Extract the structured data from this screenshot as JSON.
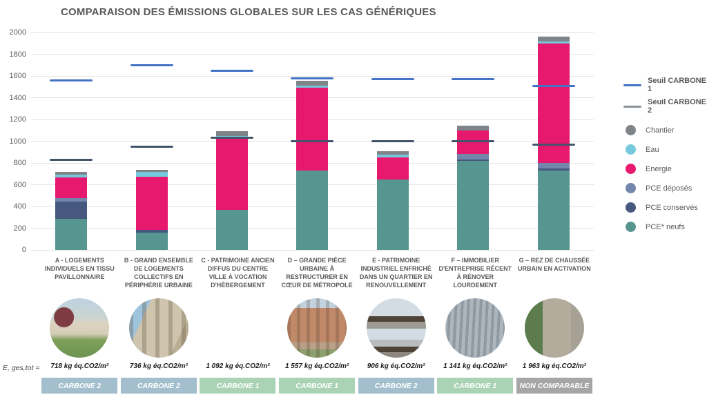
{
  "title": "COMPARAISON DES ÉMISSIONS GLOBALES SUR LES CAS GÉNÉRIQUES",
  "e_ges_label": "E, ges,tot =",
  "colors": {
    "seuil1": "#4472c4",
    "seuil2": "#44546a",
    "seuil2_legend": "#8a9199",
    "chantier": "#7f8488",
    "eau": "#76c8dc",
    "energie": "#e7196f",
    "pce_deposes": "#7386ab",
    "pce_conserves": "#46587e",
    "pce_neufs": "#579690",
    "badge_carbone1": "#a9d3b4",
    "badge_carbone2": "#a3bfcd",
    "badge_non_comparable": "#a6a6a6"
  },
  "legend": {
    "entries": [
      {
        "label": "Seuil CARBONE 1",
        "marker": "line",
        "color_key": "seuil1",
        "bold": true
      },
      {
        "label": "Seuil CARBONE 2",
        "marker": "line",
        "color_key": "seuil2_legend",
        "bold": true
      },
      {
        "label": "Chantier",
        "marker": "circle",
        "color_key": "chantier"
      },
      {
        "label": "Eau",
        "marker": "circle",
        "color_key": "eau"
      },
      {
        "label": "Energie",
        "marker": "circle",
        "color_key": "energie"
      },
      {
        "label": "PCE déposés",
        "marker": "circle",
        "color_key": "pce_deposes"
      },
      {
        "label": "PCE conservés",
        "marker": "circle",
        "color_key": "pce_conserves"
      },
      {
        "label": "PCE* neufs",
        "marker": "circle",
        "color_key": "pce_neufs"
      }
    ]
  },
  "chart_data": {
    "type": "bar",
    "stacked": true,
    "title": "COMPARAISON DES ÉMISSIONS GLOBALES SUR LES CAS GÉNÉRIQUES",
    "ylabel": "",
    "xlabel": "",
    "ylim": [
      0,
      2000
    ],
    "ytick_step": 200,
    "grid": true,
    "legend_position": "right",
    "unit": "kg éq.CO2/m²",
    "categories": [
      {
        "label": "A - LOGEMENTS INDIVIDUELS EN TISSU PAVILLONNAIRE",
        "total": 718,
        "total_label": "718 kg éq.CO2/m²",
        "badge": "CARBONE 2",
        "badge_type": "carbone2",
        "photo": "pavillon-maison-individuelle"
      },
      {
        "label": "B - GRAND ENSEMBLE DE LOGEMENTS COLLECTIFS EN PÉRIPHÉRIE URBAINE",
        "total": 736,
        "total_label": "736 kg éq.CO2/m²",
        "badge": "CARBONE 2",
        "badge_type": "carbone2",
        "photo": "immeuble-logements-collectifs"
      },
      {
        "label": "C - PATRIMOINE ANCIEN DIFFUS DU CENTRE VILLE À VOCATION D'HÉBERGEMENT",
        "total": 1092,
        "total_label": "1 092 kg éq.CO2/m²",
        "badge": "CARBONE 1",
        "badge_type": "carbone1",
        "photo": "maison-ancienne-centre-ville"
      },
      {
        "label": "D – GRANDE PIÈCE URBAINE À RESTRUCTURER EN CŒUR DE MÉTROPOLE",
        "total": 1557,
        "total_label": "1 557 kg éq.CO2/m²",
        "badge": "CARBONE 1",
        "badge_type": "carbone1",
        "photo": "grand-batiment-metropole"
      },
      {
        "label": "E - PATRIMOINE INDUSTRIEL ENFRICHÉ DANS UN QUARTIER EN RENOUVELLEMENT",
        "total": 906,
        "total_label": "906 kg éq.CO2/m²",
        "badge": "CARBONE 2",
        "badge_type": "carbone2",
        "photo": "structure-industrielle"
      },
      {
        "label": "F – IMMOBILIER D'ENTREPRISE  RÉCENT À RÉNOVER LOURDEMENT",
        "total": 1141,
        "total_label": "1 141 kg éq.CO2/m²",
        "badge": "CARBONE 1",
        "badge_type": "carbone1",
        "photo": "immeuble-bureaux-moderne"
      },
      {
        "label": "G – REZ DE CHAUSSÉE URBAIN EN ACTIVATION",
        "total": 1963,
        "total_label": "1 963 kg éq.CO2/m²",
        "badge": "NON COMPARABLE",
        "badge_type": "non-comparable",
        "photo": "batiment-pierre-urbain"
      }
    ],
    "series": [
      {
        "name": "PCE* neufs",
        "color_key": "pce_neufs",
        "values": [
          285,
          161,
          370,
          730,
          650,
          819,
          730
        ]
      },
      {
        "name": "PCE conservés",
        "color_key": "pce_conserves",
        "values": [
          160,
          25,
          0,
          0,
          0,
          15,
          18
        ]
      },
      {
        "name": "PCE déposés",
        "color_key": "pce_deposes",
        "values": [
          33,
          0,
          0,
          0,
          0,
          50,
          55
        ]
      },
      {
        "name": "Energie",
        "color_key": "energie",
        "values": [
          190,
          485,
          652,
          760,
          200,
          216,
          1093
        ]
      },
      {
        "name": "Eau",
        "color_key": "eau",
        "values": [
          25,
          45,
          25,
          22,
          26,
          0,
          22
        ]
      },
      {
        "name": "Chantier",
        "color_key": "chantier",
        "values": [
          25,
          20,
          45,
          45,
          30,
          41,
          45
        ]
      }
    ],
    "threshold_lines": [
      {
        "name": "Seuil CARBONE 1",
        "color_key": "seuil1",
        "values": [
          1560,
          1700,
          1650,
          1580,
          1570,
          1570,
          1510
        ]
      },
      {
        "name": "Seuil CARBONE 2",
        "color_key": "seuil2",
        "values": [
          830,
          950,
          1030,
          1000,
          1000,
          1000,
          970
        ]
      }
    ]
  }
}
